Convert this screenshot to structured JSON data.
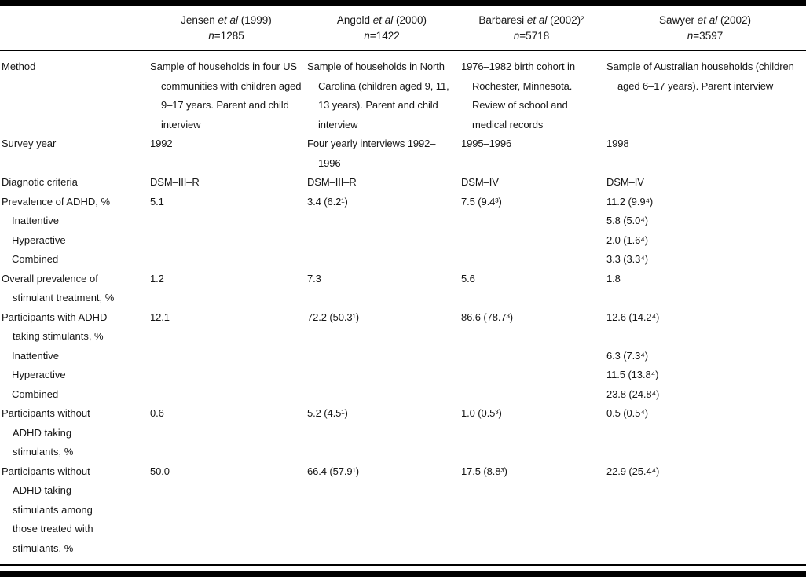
{
  "table": {
    "columns": [
      {
        "author": "Jensen",
        "etal": "et al",
        "year": "(1999)",
        "n_prefix": "n",
        "n_value": "=1285"
      },
      {
        "author": "Angold",
        "etal": "et al",
        "year": "(2000)",
        "n_prefix": "n",
        "n_value": "=1422"
      },
      {
        "author": "Barbaresi",
        "etal": "et al",
        "year": "(2002)²",
        "n_prefix": "n",
        "n_value": "=5718"
      },
      {
        "author": "Sawyer",
        "etal": "et al",
        "year": "(2002)",
        "n_prefix": "n",
        "n_value": "=3597"
      }
    ],
    "rows": [
      {
        "label": "Method",
        "cells": [
          "Sample of households in four US communities with children aged 9–17 years. Parent and child interview",
          "Sample of households in North Carolina (children aged 9, 11, 13 years). Parent and child interview",
          "1976–1982 birth cohort in Rochester, Minnesota. Review of school and medical records",
          "Sample of Australian households (children aged 6–17 years). Parent interview"
        ]
      },
      {
        "label": "Survey year",
        "cells": [
          "1992",
          "Four yearly interviews 1992–1996",
          "1995–1996",
          "1998"
        ]
      },
      {
        "label": "Diagnotic criteria",
        "cells": [
          "DSM–III–R",
          "DSM–III–R",
          "DSM–IV",
          "DSM–IV"
        ]
      },
      {
        "label": "Prevalence of ADHD, %",
        "cells": [
          "5.1",
          "3.4 (6.2¹)",
          "7.5 (9.4³)",
          "11.2 (9.9⁴)"
        ]
      },
      {
        "label": "Inattentive",
        "cells": [
          "",
          "",
          "",
          "5.8 (5.0⁴)"
        ]
      },
      {
        "label": "Hyperactive",
        "cells": [
          "",
          "",
          "",
          "2.0 (1.6⁴)"
        ]
      },
      {
        "label": "Combined",
        "cells": [
          "",
          "",
          "",
          "3.3 (3.3⁴)"
        ]
      },
      {
        "label": "Overall prevalence of stimulant treatment, %",
        "cells": [
          "1.2",
          "7.3",
          "5.6",
          "1.8"
        ]
      },
      {
        "label": "Participants with ADHD taking stimulants, %",
        "cells": [
          "12.1",
          "72.2 (50.3¹)",
          "86.6 (78.7³)",
          "12.6 (14.2⁴)"
        ]
      },
      {
        "label": "Inattentive",
        "cells": [
          "",
          "",
          "",
          "6.3 (7.3⁴)"
        ]
      },
      {
        "label": "Hyperactive",
        "cells": [
          "",
          "",
          "",
          "11.5 (13.8⁴)"
        ]
      },
      {
        "label": "Combined",
        "cells": [
          "",
          "",
          "",
          "23.8 (24.8⁴)"
        ]
      },
      {
        "label": "Participants without ADHD taking stimulants, %",
        "cells": [
          "0.6",
          "5.2 (4.5¹)",
          "1.0 (0.5³)",
          "0.5 (0.5⁴)"
        ]
      },
      {
        "label": "Participants without ADHD taking stimulants among those treated with stimulants, %",
        "cells": [
          "50.0",
          "66.4 (57.9¹)",
          "17.5 (8.8³)",
          "22.9 (25.4⁴)"
        ]
      }
    ]
  }
}
